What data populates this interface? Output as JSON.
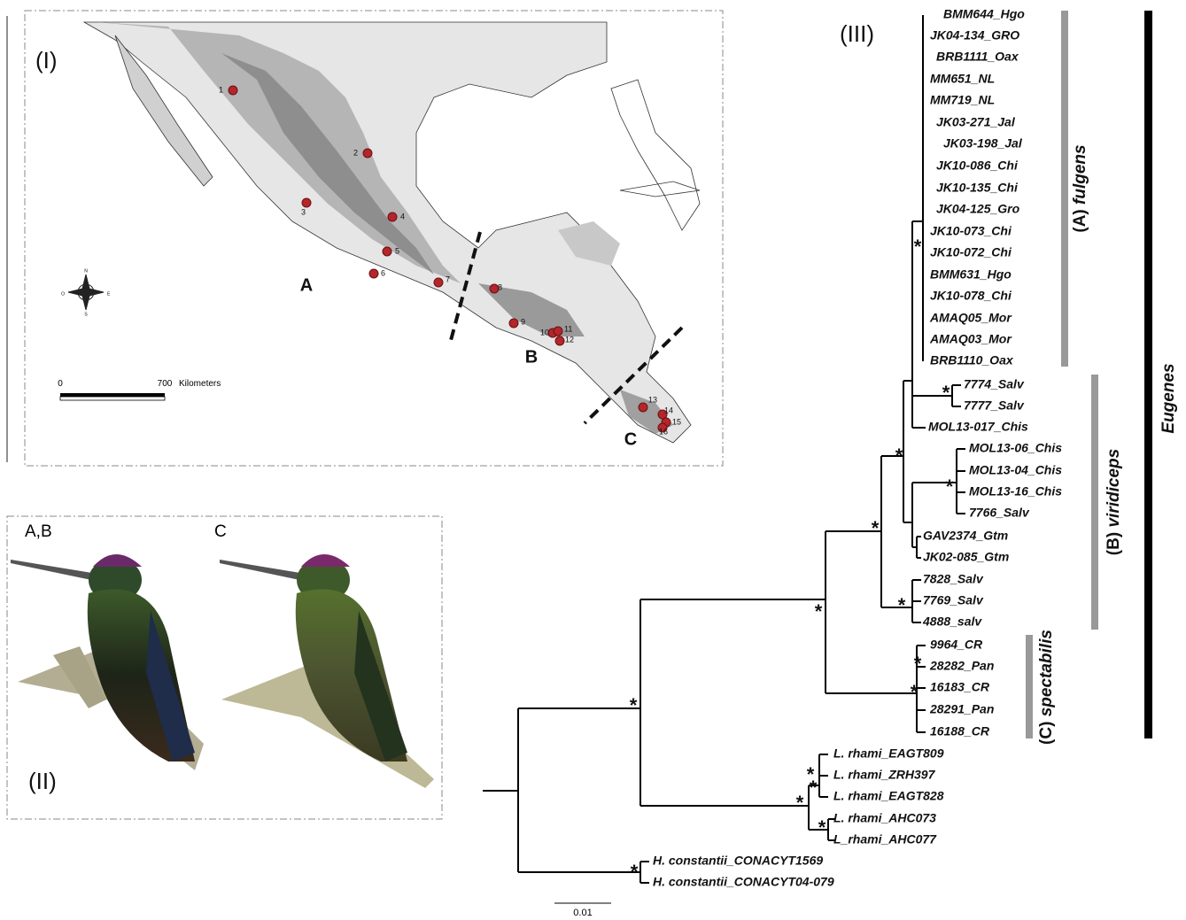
{
  "panels": {
    "map": "(I)",
    "birds": "(II)",
    "tree": "(III)"
  },
  "map": {
    "regions": [
      "A",
      "B",
      "C"
    ],
    "sites": [
      "1",
      "2",
      "3",
      "4",
      "5",
      "6",
      "7",
      "8",
      "9",
      "10",
      "11",
      "12",
      "13",
      "14",
      "15",
      "16"
    ],
    "scale_bar": {
      "start": "0",
      "end": "700",
      "unit": "Kilometers"
    },
    "compass": [
      "N",
      "E",
      "S",
      "O"
    ]
  },
  "birds": {
    "labels": [
      "A,B",
      "C"
    ]
  },
  "tree": {
    "tips": [
      "BMM644_Hgo",
      "JK04-134_GRO",
      "BRB1111_Oax",
      "MM651_NL",
      "MM719_NL",
      "JK03-271_Jal",
      "JK03-198_Jal",
      "JK10-086_Chi",
      "JK10-135_Chi",
      "JK04-125_Gro",
      "JK10-073_Chi",
      "JK10-072_Chi",
      "BMM631_Hgo",
      "JK10-078_Chi",
      "AMAQ05_Mor",
      "AMAQ03_Mor",
      "BRB1110_Oax",
      "7774_Salv",
      "7777_Salv",
      "MOL13-017_Chis",
      "MOL13-06_Chis",
      "MOL13-04_Chis",
      "MOL13-16_Chis",
      "7766_Salv",
      "GAV2374_Gtm",
      "JK02-085_Gtm",
      "7828_Salv",
      "7769_Salv",
      "4888_salv",
      "9964_CR",
      "28282_Pan",
      "16183_CR",
      "28291_Pan",
      "16188_CR",
      "L. rhami_EAGT809",
      "L. rhami_ZRH397",
      "L. rhami_EAGT828",
      "L. rhami_AHC073",
      "L_rhami_AHC077",
      "H. constantii_CONACYT1569",
      "H. constantii_CONACYT04-079"
    ],
    "support": "*",
    "clades": [
      {
        "prefix": "(A)",
        "name": "fulgens"
      },
      {
        "prefix": "(B)",
        "name": "viridiceps"
      },
      {
        "prefix": "(C)",
        "name": "spectabilis"
      }
    ],
    "genus": "Eugenes",
    "scale": "0.01"
  }
}
